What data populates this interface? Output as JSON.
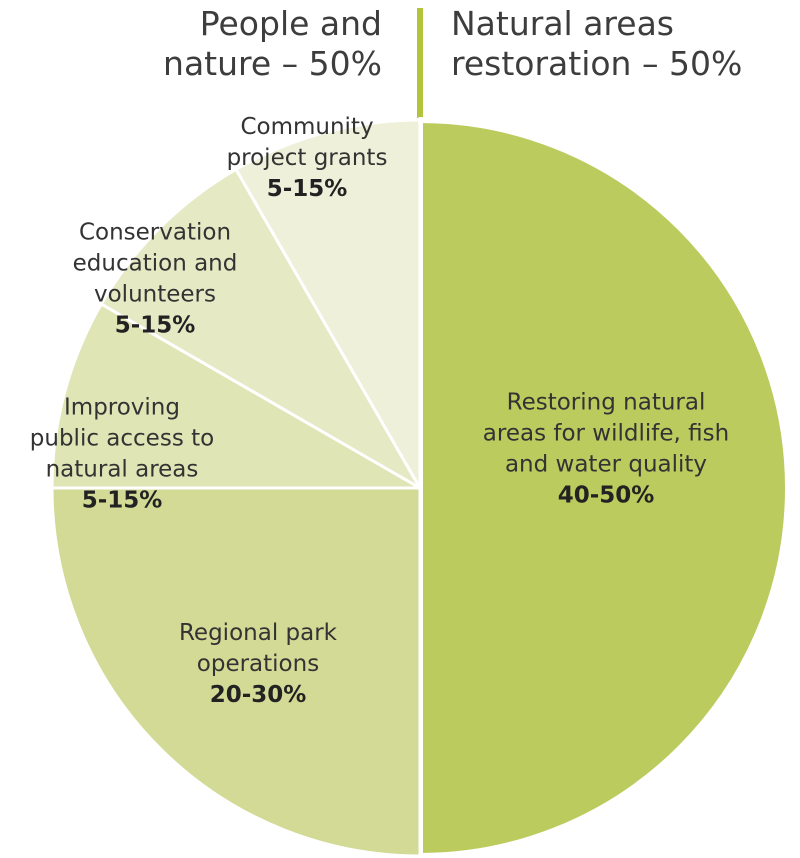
{
  "header": {
    "left": [
      "People and",
      "nature – 50%"
    ],
    "right": [
      "Natural areas",
      "restoration – 50%"
    ]
  },
  "colors": {
    "divider": "#b3c43a",
    "separator": "#ffffff",
    "text": "#333333"
  },
  "chart_data": {
    "type": "pie",
    "title": "",
    "slices": [
      {
        "label": [
          "Restoring natural",
          "areas for wildlife, fish",
          "and water quality"
        ],
        "value_text": "40-50%",
        "value": 50,
        "color": "#bccb5e"
      },
      {
        "label": [
          "Regional park",
          "operations"
        ],
        "value_text": "20-30%",
        "value": 25,
        "color": "#d2da95"
      },
      {
        "label": [
          "Improving",
          "public access to",
          "natural areas"
        ],
        "value_text": "5-15%",
        "value": 8.333,
        "color": "#dfe5b5"
      },
      {
        "label": [
          "Conservation",
          "education and",
          "volunteers"
        ],
        "value_text": "5-15%",
        "value": 8.333,
        "color": "#e5e9c4"
      },
      {
        "label": [
          "Community",
          "project grants"
        ],
        "value_text": "5-15%",
        "value": 8.334,
        "color": "#eef0d9"
      }
    ]
  }
}
